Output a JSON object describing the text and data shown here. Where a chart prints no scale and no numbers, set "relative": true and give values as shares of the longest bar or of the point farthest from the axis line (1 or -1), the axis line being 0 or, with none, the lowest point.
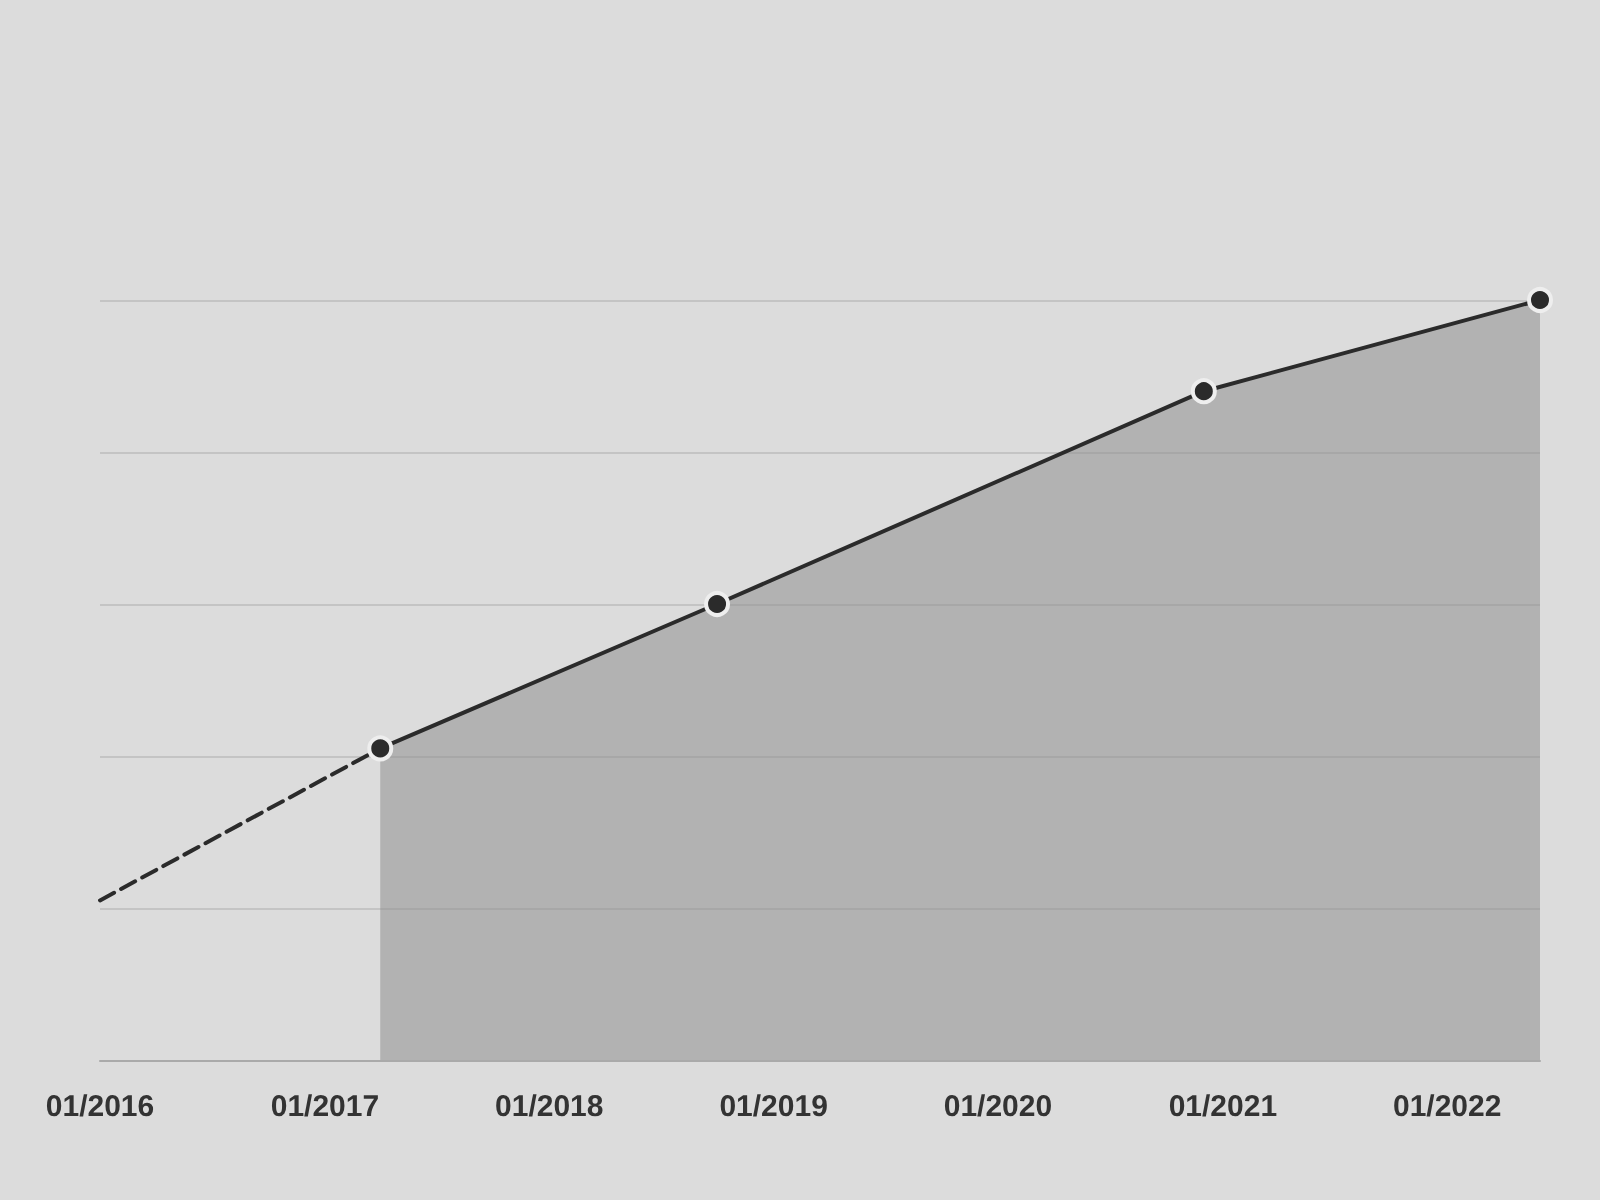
{
  "chart_data": {
    "type": "line",
    "relative": true,
    "grid": "y",
    "xlim": [
      "2016-01",
      "2022-06"
    ],
    "xticks": [
      {
        "value": "2016-01",
        "label": "01/2016"
      },
      {
        "value": "2017-01",
        "label": "01/2017"
      },
      {
        "value": "2018-01",
        "label": "01/2018"
      },
      {
        "value": "2019-01",
        "label": "01/2019"
      },
      {
        "value": "2020-01",
        "label": "01/2020"
      },
      {
        "value": "2021-01",
        "label": "01/2021"
      },
      {
        "value": "2022-01",
        "label": "01/2022"
      }
    ],
    "series": [
      {
        "color": "#2b2b2b",
        "line_style": "dashed",
        "x": [
          "2016-01",
          "2017-04"
        ],
        "values": [
          0.21,
          0.41
        ]
      },
      {
        "type": "area",
        "color": "#2b2b2b",
        "line_style": "solid",
        "marker": "circle",
        "x": [
          "2017-04",
          "2018-10",
          "2020-12",
          "2022-06"
        ],
        "values": [
          0.41,
          0.6,
          0.88,
          1.0
        ]
      }
    ]
  }
}
